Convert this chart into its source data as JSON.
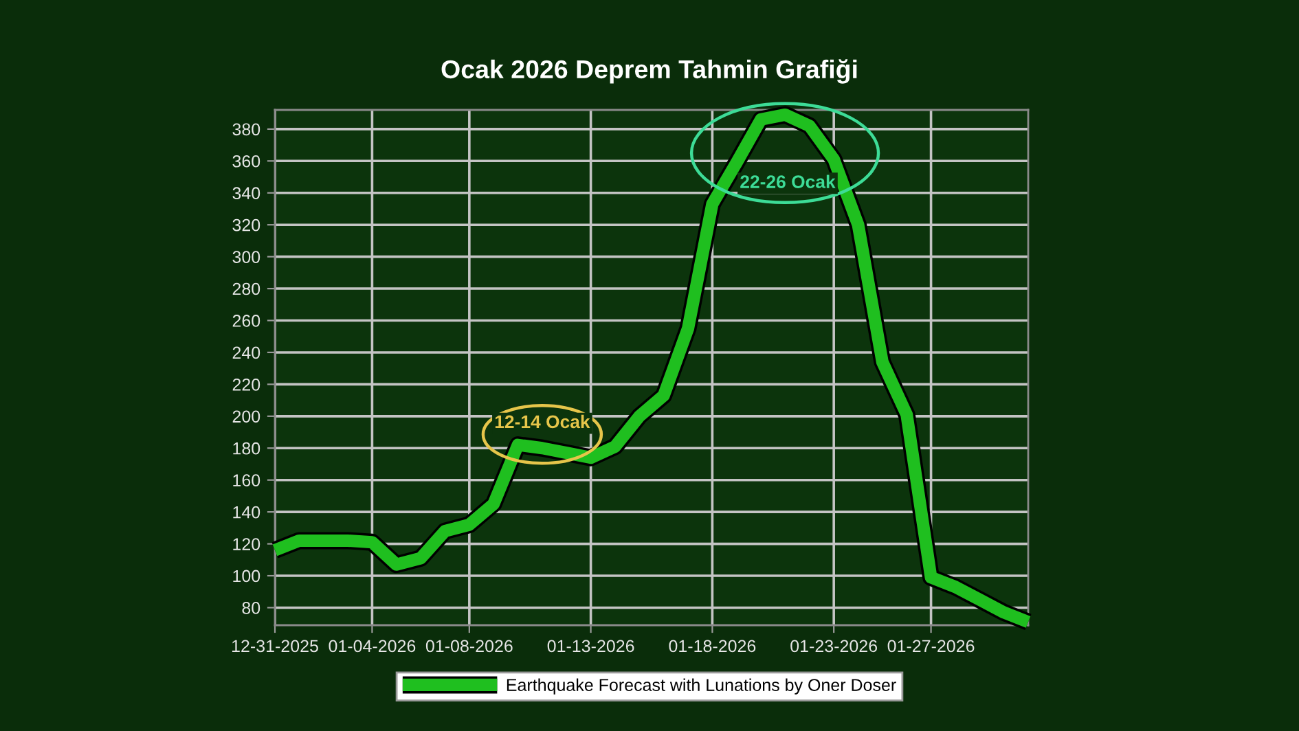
{
  "chart_data": {
    "type": "line",
    "title": "Ocak 2026 Deprem Tahmin Grafiği",
    "x": [
      "2025-12-31",
      "2026-01-01",
      "2026-01-02",
      "2026-01-03",
      "2026-01-04",
      "2026-01-05",
      "2026-01-06",
      "2026-01-07",
      "2026-01-08",
      "2026-01-09",
      "2026-01-10",
      "2026-01-11",
      "2026-01-12",
      "2026-01-13",
      "2026-01-14",
      "2026-01-15",
      "2026-01-16",
      "2026-01-17",
      "2026-01-18",
      "2026-01-19",
      "2026-01-20",
      "2026-01-21",
      "2026-01-22",
      "2026-01-23",
      "2026-01-24",
      "2026-01-25",
      "2026-01-26",
      "2026-01-27",
      "2026-01-28",
      "2026-01-29",
      "2026-01-30",
      "2026-01-31"
    ],
    "series": [
      {
        "name": "Earthquake Forecast with Lunations by Oner Doser",
        "color": "#1fbf1f",
        "values": [
          116,
          122,
          122,
          122,
          121,
          107,
          111,
          128,
          132,
          145,
          182,
          180,
          177,
          174,
          181,
          200,
          213,
          255,
          333,
          359,
          386,
          389,
          382,
          361,
          320,
          234,
          201,
          99,
          93,
          85,
          77,
          71
        ]
      }
    ],
    "xlim": [
      "2025-12-31",
      "2026-01-31"
    ],
    "xticks": [
      {
        "value": "2025-12-31",
        "label": "12-31-2025"
      },
      {
        "value": "2026-01-04",
        "label": "01-04-2026"
      },
      {
        "value": "2026-01-08",
        "label": "01-08-2026"
      },
      {
        "value": "2026-01-13",
        "label": "01-13-2026"
      },
      {
        "value": "2026-01-18",
        "label": "01-18-2026"
      },
      {
        "value": "2026-01-23",
        "label": "01-23-2026"
      },
      {
        "value": "2026-01-27",
        "label": "01-27-2026"
      }
    ],
    "ylim": [
      69,
      392
    ],
    "yticks": [
      80,
      100,
      120,
      140,
      160,
      180,
      200,
      220,
      240,
      260,
      280,
      300,
      320,
      340,
      360,
      380
    ],
    "grid": true,
    "legend": "bottom",
    "annotations": [
      {
        "text": "12-14 Ocak",
        "x": "2026-01-11",
        "y": 180
      },
      {
        "text": "22-26 Ocak",
        "x": "2026-01-18T12:00",
        "y": 346
      }
    ]
  }
}
